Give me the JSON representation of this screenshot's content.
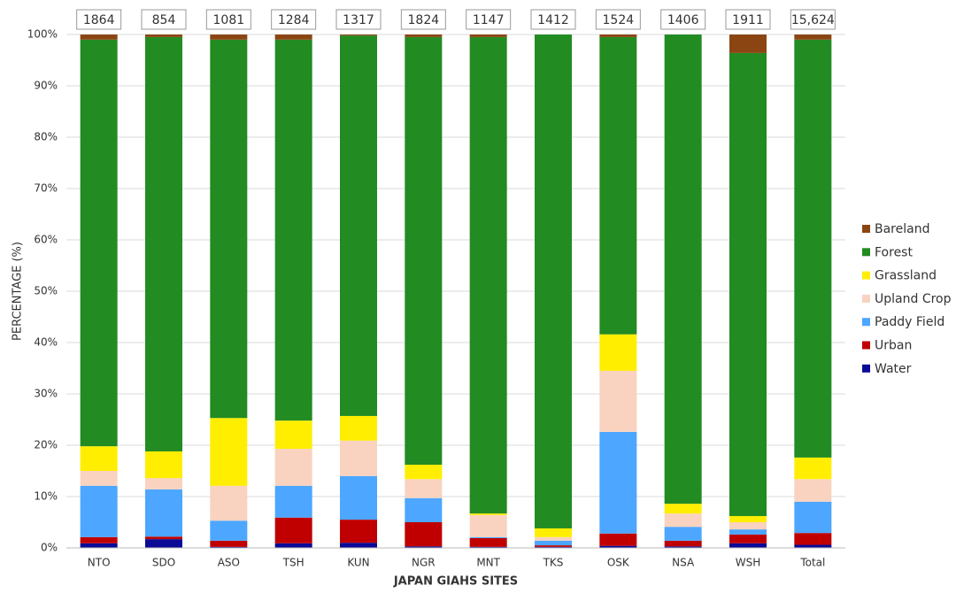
{
  "chart_data": {
    "type": "stacked_bar_100",
    "x_label": "JAPAN GIAHS SITES",
    "y_label": "PERCENTAGE (%)",
    "categories": [
      "NTO",
      "SDO",
      "ASO",
      "TSH",
      "KUN",
      "NGR",
      "MNT",
      "TKS",
      "OSK",
      "NSA",
      "WSH",
      "Total"
    ],
    "totals": [
      "1864",
      "854",
      "1081",
      "1284",
      "1317",
      "1824",
      "1147",
      "1412",
      "1524",
      "1406",
      "1911",
      "15,624"
    ],
    "ylim": [
      0,
      100
    ],
    "yticks": [
      {
        "value": 0,
        "label": "0%"
      },
      {
        "value": 10,
        "label": "10%"
      },
      {
        "value": 20,
        "label": "20%"
      },
      {
        "value": 30,
        "label": "30%"
      },
      {
        "value": 40,
        "label": "40%"
      },
      {
        "value": 50,
        "label": "50%"
      },
      {
        "value": 60,
        "label": "60%"
      },
      {
        "value": 70,
        "label": "70%"
      },
      {
        "value": 80,
        "label": "80%"
      },
      {
        "value": 90,
        "label": "90%"
      },
      {
        "value": 100,
        "label": "100%"
      }
    ],
    "grid": true,
    "legend": "right",
    "series": [
      {
        "name": "Water",
        "color": "#0a0a96",
        "values": [
          0.9,
          1.7,
          0.2,
          0.9,
          1.0,
          0.3,
          0.2,
          0.2,
          0.4,
          0.3,
          0.9,
          0.6
        ]
      },
      {
        "name": "Urban",
        "color": "#c00000",
        "values": [
          1.2,
          0.5,
          1.2,
          5.0,
          4.5,
          4.7,
          1.7,
          0.3,
          2.4,
          1.1,
          1.7,
          2.3
        ]
      },
      {
        "name": "Paddy Field",
        "color": "#4da6ff",
        "values": [
          10.0,
          9.2,
          3.9,
          6.2,
          8.5,
          4.7,
          0.2,
          0.9,
          19.8,
          2.7,
          1.0,
          6.1
        ]
      },
      {
        "name": "Upland Crop",
        "color": "#f9d3bf",
        "values": [
          2.9,
          2.2,
          6.8,
          7.2,
          6.9,
          3.7,
          4.3,
          0.7,
          11.9,
          2.6,
          1.4,
          4.4
        ]
      },
      {
        "name": "Grassland",
        "color": "#ffee00",
        "values": [
          4.8,
          5.2,
          13.2,
          5.5,
          4.8,
          2.8,
          0.3,
          1.7,
          7.1,
          1.9,
          1.2,
          4.2
        ]
      },
      {
        "name": "Forest",
        "color": "#228b22",
        "values": [
          79.2,
          80.7,
          73.7,
          74.2,
          74.1,
          83.3,
          92.8,
          96.2,
          57.9,
          91.4,
          90.2,
          81.4
        ]
      },
      {
        "name": "Bareland",
        "color": "#8b4513",
        "values": [
          1.0,
          0.5,
          1.0,
          1.0,
          0.2,
          0.5,
          0.5,
          0.0,
          0.5,
          0.0,
          3.6,
          1.0
        ]
      }
    ]
  }
}
